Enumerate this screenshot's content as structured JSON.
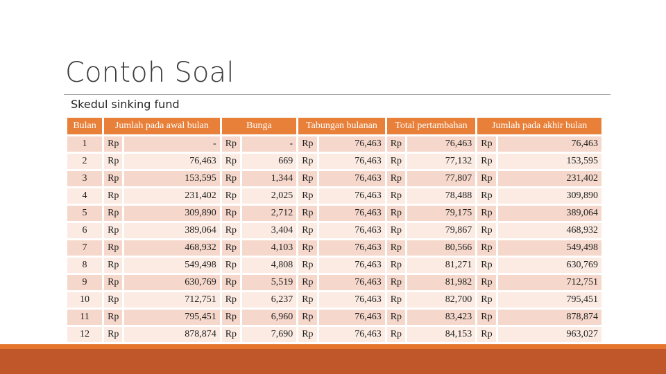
{
  "slide": {
    "title": "Contoh Soal",
    "subtitle": "Skedul sinking fund"
  },
  "table": {
    "headers": [
      "Bulan",
      "Jumlah pada awal bulan",
      "Bunga",
      "Tabungan bulanan",
      "Total pertambahan",
      "Jumlah pada akhir bulan"
    ],
    "currency": "Rp",
    "rows": [
      {
        "month": "1",
        "awal": "-",
        "bunga": "-",
        "tabungan": "76,463",
        "total": "76,463",
        "akhir": "76,463"
      },
      {
        "month": "2",
        "awal": "76,463",
        "bunga": "669",
        "tabungan": "76,463",
        "total": "77,132",
        "akhir": "153,595"
      },
      {
        "month": "3",
        "awal": "153,595",
        "bunga": "1,344",
        "tabungan": "76,463",
        "total": "77,807",
        "akhir": "231,402"
      },
      {
        "month": "4",
        "awal": "231,402",
        "bunga": "2,025",
        "tabungan": "76,463",
        "total": "78,488",
        "akhir": "309,890"
      },
      {
        "month": "5",
        "awal": "309,890",
        "bunga": "2,712",
        "tabungan": "76,463",
        "total": "79,175",
        "akhir": "389,064"
      },
      {
        "month": "6",
        "awal": "389,064",
        "bunga": "3,404",
        "tabungan": "76,463",
        "total": "79,867",
        "akhir": "468,932"
      },
      {
        "month": "7",
        "awal": "468,932",
        "bunga": "4,103",
        "tabungan": "76,463",
        "total": "80,566",
        "akhir": "549,498"
      },
      {
        "month": "8",
        "awal": "549,498",
        "bunga": "4,808",
        "tabungan": "76,463",
        "total": "81,271",
        "akhir": "630,769"
      },
      {
        "month": "9",
        "awal": "630,769",
        "bunga": "5,519",
        "tabungan": "76,463",
        "total": "81,982",
        "akhir": "712,751"
      },
      {
        "month": "10",
        "awal": "712,751",
        "bunga": "6,237",
        "tabungan": "76,463",
        "total": "82,700",
        "akhir": "795,451"
      },
      {
        "month": "11",
        "awal": "795,451",
        "bunga": "6,960",
        "tabungan": "76,463",
        "total": "83,423",
        "akhir": "878,874"
      },
      {
        "month": "12",
        "awal": "878,874",
        "bunga": "7,690",
        "tabungan": "76,463",
        "total": "84,153",
        "akhir": "963,027"
      }
    ]
  },
  "colors": {
    "header_bg": "#e8803a",
    "row_dark": "#f5d8cb",
    "row_light": "#fbebe3",
    "bottom_bar": "#bf572a",
    "bottom_bar_accent": "#e5742c"
  }
}
